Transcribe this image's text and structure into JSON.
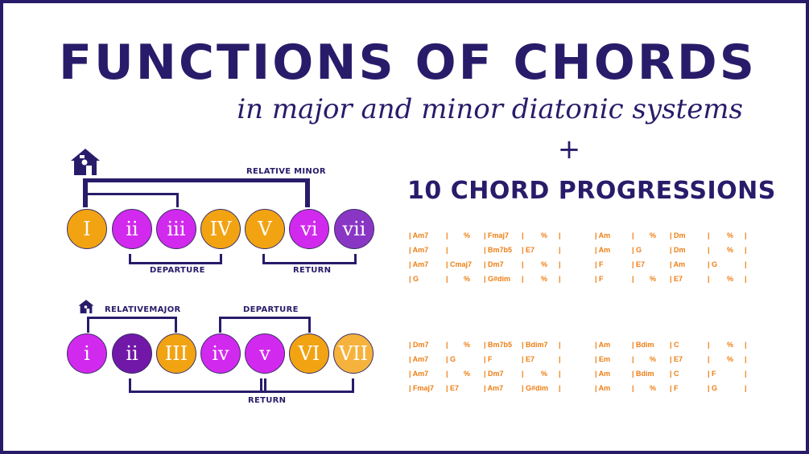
{
  "title": "FUNCTIONS OF CHORDS",
  "subtitle": "in major and minor diatonic systems",
  "plus": "+",
  "progressions_title": "10 CHORD PROGRESSIONS",
  "major": {
    "numerals": [
      "I",
      "ii",
      "iii",
      "IV",
      "V",
      "vi",
      "vii"
    ],
    "colors": [
      "#f2a312",
      "#d229ee",
      "#d229ee",
      "#f2a312",
      "#f2a312",
      "#d229ee",
      "#8a36c4"
    ],
    "relative_label": "RELATIVE MINOR",
    "departure_label": "DEPARTURE",
    "return_label": "RETURN"
  },
  "minor": {
    "numerals": [
      "i",
      "ii",
      "III",
      "iv",
      "v",
      "VI",
      "VII"
    ],
    "colors": [
      "#d229ee",
      "#7118a8",
      "#f2a312",
      "#d229ee",
      "#d229ee",
      "#f2a312",
      "#f5b33d"
    ],
    "relative_label": "RELATIVEMAJOR",
    "departure_label": "DEPARTURE",
    "return_label": "RETURN"
  },
  "progressions": [
    {
      "rows": [
        [
          "| Am7",
          "|",
          "%",
          "| Fmaj7",
          "|",
          "%",
          "|"
        ],
        [
          "| Am7",
          "|",
          "",
          "| Bm7b5",
          "| E7",
          "",
          "|"
        ],
        [
          "| Am7",
          "| Cmaj7",
          "",
          "| Dm7",
          "|",
          "%",
          "|"
        ],
        [
          "| G",
          "|",
          "%",
          "| G#dim",
          "|",
          "%",
          "|"
        ]
      ]
    },
    {
      "rows": [
        [
          "| Am",
          "|",
          "%",
          "| Dm",
          "|",
          "%",
          "|"
        ],
        [
          "| Am",
          "| G",
          "",
          "| Dm",
          "|",
          "%",
          "|"
        ],
        [
          "| F",
          "| E7",
          "",
          "| Am",
          "| G",
          "",
          "|"
        ],
        [
          "| F",
          "|",
          "%",
          "| E7",
          "|",
          "%",
          "|"
        ]
      ]
    },
    {
      "rows": [
        [
          "| Dm7",
          "|",
          "%",
          "| Bm7b5",
          "| Bdim7",
          "",
          "|"
        ],
        [
          "| Am7",
          "| G",
          "",
          "| F",
          "| E7",
          "",
          "|"
        ],
        [
          "| Am7",
          "|",
          "%",
          "| Dm7",
          "|",
          "%",
          "|"
        ],
        [
          "| Fmaj7",
          "| E7",
          "",
          "| Am7",
          "| G#dim",
          "",
          "|"
        ]
      ]
    },
    {
      "rows": [
        [
          "| Am",
          "| Bdim",
          "",
          "| C",
          "|",
          "%",
          "|"
        ],
        [
          "| Em",
          "|",
          "%",
          "| E7",
          "|",
          "%",
          "|"
        ],
        [
          "| Am",
          "| Bdim",
          "",
          "| C",
          "| F",
          "",
          "|"
        ],
        [
          "| Am",
          "|",
          "%",
          "| F",
          "| G",
          "",
          "|"
        ]
      ]
    }
  ]
}
